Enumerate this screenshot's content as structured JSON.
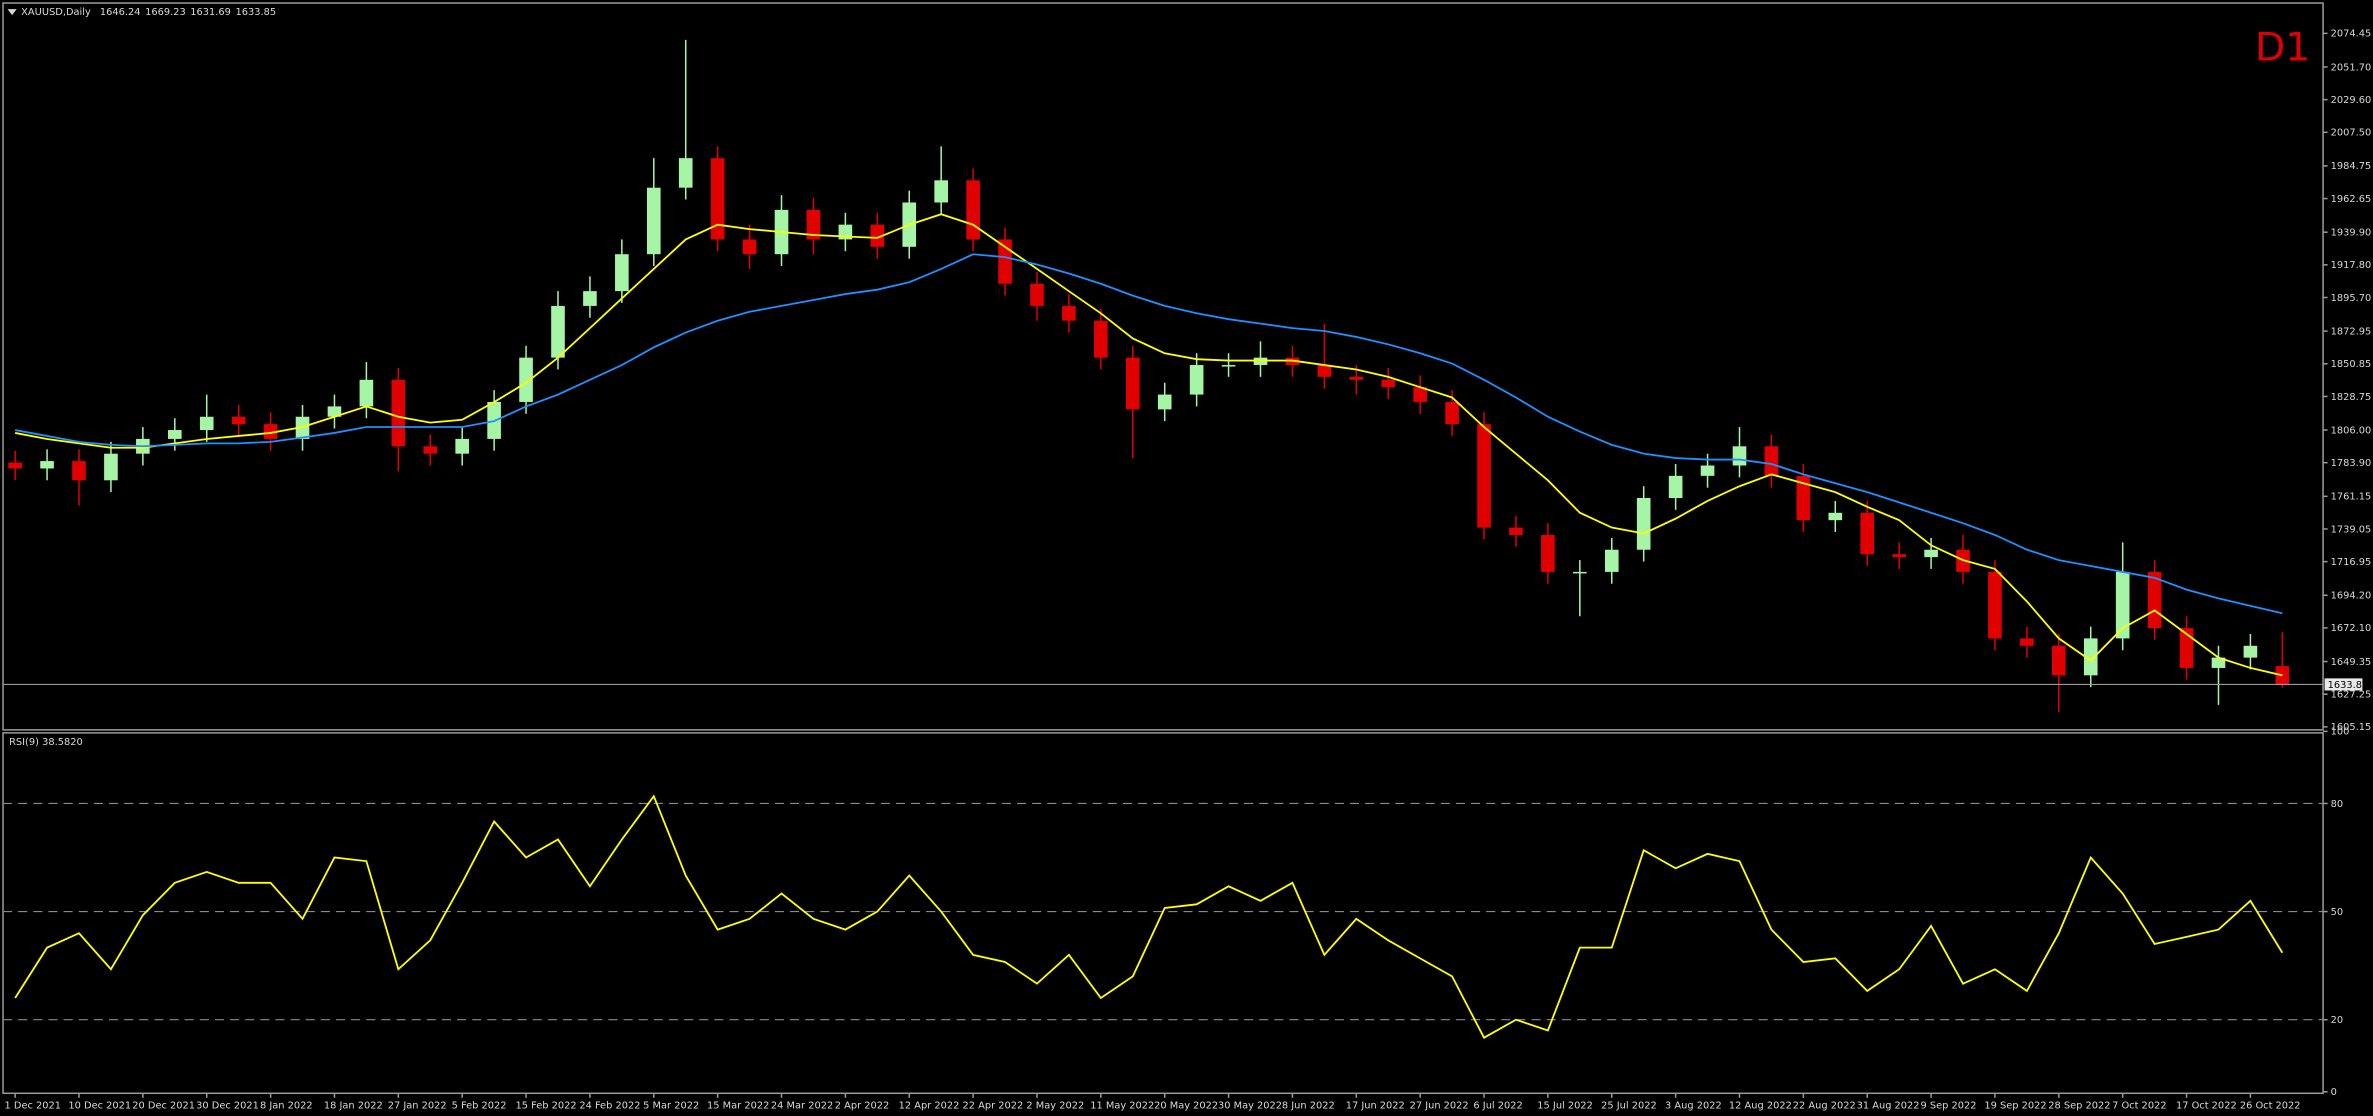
{
  "chart_data": [
    {
      "type": "candlestick",
      "title": "XAUUSD,Daily",
      "badge": "D1",
      "up_color": "#a6f5a6",
      "down_color": "#e00000",
      "open": [
        1784,
        1780,
        1785,
        1772,
        1790,
        1800,
        1806,
        1815,
        1810,
        1800,
        1815,
        1822,
        1840,
        1795,
        1790,
        1800,
        1825,
        1855,
        1890,
        1900,
        1925,
        1970,
        1990,
        1935,
        1925,
        1955,
        1935,
        1945,
        1930,
        1960,
        1975,
        1935,
        1905,
        1890,
        1880,
        1855,
        1820,
        1830,
        1850,
        1850,
        1855,
        1850,
        1842,
        1840,
        1835,
        1825,
        1810,
        1740,
        1735,
        1710,
        1710,
        1725,
        1760,
        1775,
        1782,
        1795,
        1775,
        1745,
        1750,
        1722,
        1720,
        1725,
        1710,
        1665,
        1660,
        1640,
        1665,
        1710,
        1672,
        1645,
        1652,
        1646.24
      ],
      "high": [
        1792,
        1793,
        1793,
        1798,
        1808,
        1814,
        1830,
        1823,
        1818,
        1823,
        1830,
        1852,
        1848,
        1803,
        1808,
        1833,
        1863,
        1900,
        1910,
        1935,
        1990,
        2070,
        1998,
        1945,
        1965,
        1963,
        1953,
        1953,
        1968,
        1998,
        1983,
        1943,
        1913,
        1898,
        1888,
        1863,
        1838,
        1858,
        1858,
        1866,
        1863,
        1878,
        1850,
        1848,
        1843,
        1833,
        1818,
        1748,
        1743,
        1718,
        1733,
        1768,
        1783,
        1790,
        1808,
        1803,
        1783,
        1758,
        1758,
        1730,
        1733,
        1735,
        1718,
        1673,
        1668,
        1673,
        1730,
        1718,
        1680,
        1660,
        1668,
        1669.23
      ],
      "low": [
        1772,
        1772,
        1755,
        1764,
        1782,
        1792,
        1798,
        1802,
        1792,
        1792,
        1807,
        1814,
        1778,
        1782,
        1782,
        1792,
        1817,
        1847,
        1882,
        1892,
        1917,
        1962,
        1927,
        1915,
        1917,
        1925,
        1927,
        1922,
        1922,
        1952,
        1927,
        1897,
        1880,
        1872,
        1847,
        1787,
        1812,
        1822,
        1842,
        1842,
        1842,
        1834,
        1830,
        1827,
        1817,
        1802,
        1732,
        1727,
        1702,
        1680,
        1702,
        1717,
        1752,
        1767,
        1774,
        1767,
        1737,
        1737,
        1714,
        1712,
        1712,
        1702,
        1657,
        1652,
        1615,
        1632,
        1657,
        1664,
        1637,
        1620,
        1644,
        1631.69
      ],
      "close": [
        1780,
        1785,
        1772,
        1790,
        1800,
        1806,
        1815,
        1810,
        1800,
        1815,
        1822,
        1840,
        1795,
        1790,
        1800,
        1825,
        1855,
        1890,
        1900,
        1925,
        1970,
        1990,
        1935,
        1925,
        1955,
        1935,
        1945,
        1930,
        1960,
        1975,
        1935,
        1905,
        1890,
        1880,
        1855,
        1820,
        1830,
        1850,
        1850,
        1855,
        1850,
        1842,
        1840,
        1835,
        1825,
        1810,
        1740,
        1735,
        1710,
        1710,
        1725,
        1760,
        1775,
        1782,
        1795,
        1775,
        1745,
        1750,
        1722,
        1720,
        1725,
        1710,
        1665,
        1660,
        1640,
        1665,
        1710,
        1672,
        1645,
        1652,
        1660,
        1633.85
      ],
      "ma": [
        {
          "color": "#ffff00",
          "values": [
            1804,
            1800,
            1797,
            1794,
            1794,
            1797,
            1800,
            1802,
            1804,
            1808,
            1815,
            1822,
            1815,
            1811,
            1813,
            1825,
            1838,
            1855,
            1875,
            1895,
            1915,
            1935,
            1945,
            1942,
            1940,
            1938,
            1937,
            1936,
            1945,
            1952,
            1945,
            1930,
            1915,
            1900,
            1885,
            1868,
            1858,
            1854,
            1853,
            1853,
            1853,
            1850,
            1847,
            1842,
            1835,
            1828,
            1808,
            1790,
            1772,
            1750,
            1740,
            1736,
            1746,
            1758,
            1768,
            1776,
            1770,
            1764,
            1754,
            1745,
            1728,
            1718,
            1712,
            1690,
            1665,
            1650,
            1672,
            1684,
            1668,
            1652,
            1645,
            1640
          ]
        },
        {
          "color": "#1e90ff",
          "values": [
            1806,
            1802,
            1798,
            1796,
            1795,
            1796,
            1797,
            1797,
            1798,
            1801,
            1804,
            1808,
            1808,
            1808,
            1808,
            1812,
            1822,
            1830,
            1840,
            1850,
            1862,
            1872,
            1880,
            1886,
            1890,
            1894,
            1898,
            1901,
            1906,
            1915,
            1925,
            1923,
            1918,
            1912,
            1905,
            1897,
            1890,
            1885,
            1881,
            1878,
            1875,
            1873,
            1869,
            1864,
            1858,
            1851,
            1840,
            1828,
            1815,
            1805,
            1796,
            1790,
            1787,
            1786,
            1786,
            1783,
            1776,
            1770,
            1764,
            1757,
            1750,
            1743,
            1735,
            1725,
            1718,
            1714,
            1710,
            1706,
            1698,
            1692,
            1687,
            1682
          ]
        }
      ],
      "ylim": [
        1603.1,
        2091.9
      ],
      "yticks": [
        2074.45,
        {
          "value": 2051.7,
          "label": "2051.70"
        },
        {
          "value": 2029.6,
          "label": "2029.60"
        },
        {
          "value": 2007.5,
          "label": "2007.50"
        },
        1984.75,
        1962.65,
        {
          "value": 1939.9,
          "label": "1939.90"
        },
        {
          "value": 1917.8,
          "label": "1917.80"
        },
        {
          "value": 1895.7,
          "label": "1895.70"
        },
        1872.95,
        1850.85,
        1828.75,
        {
          "value": 1806,
          "label": "1806.00"
        },
        {
          "value": 1783.9,
          "label": "1783.90"
        },
        1761.15,
        1739.05,
        1716.95,
        {
          "value": 1694.2,
          "label": "1694.20"
        },
        {
          "value": 1672.1,
          "label": "1672.10"
        },
        1649.35,
        1627.25,
        1605.15
      ]
    },
    {
      "type": "line",
      "title": "RSI(9) 38.5820",
      "color": "#ffff00",
      "categories": [
        "1 Dec 2021",
        null,
        "10 Dec 2021",
        null,
        "20 Dec 2021",
        null,
        "30 Dec 2021",
        null,
        "8 Jan 2022",
        null,
        "18 Jan 2022",
        null,
        "27 Jan 2022",
        null,
        "5 Feb 2022",
        null,
        "15 Feb 2022",
        null,
        "24 Feb 2022",
        null,
        "5 Mar 2022",
        null,
        "15 Mar 2022",
        null,
        "24 Mar 2022",
        null,
        "2 Apr 2022",
        null,
        "12 Apr 2022",
        null,
        "22 Apr 2022",
        null,
        "2 May 2022",
        null,
        "11 May 2022",
        null,
        "20 May 2022",
        null,
        "30 May 2022",
        null,
        "8 Jun 2022",
        null,
        "17 Jun 2022",
        null,
        "27 Jun 2022",
        null,
        "6 Jul 2022",
        null,
        "15 Jul 2022",
        null,
        "25 Jul 2022",
        null,
        "3 Aug 2022",
        null,
        "12 Aug 2022",
        null,
        "22 Aug 2022",
        null,
        "31 Aug 2022",
        null,
        "9 Sep 2022",
        null,
        "19 Sep 2022",
        null,
        "28 Sep 2022",
        null,
        "7 Oct 2022",
        null,
        "17 Oct 2022",
        null,
        "26 Oct 2022",
        null
      ],
      "values": [
        26,
        40,
        44,
        34,
        49,
        58,
        61,
        58,
        58,
        48,
        65,
        64,
        34,
        42,
        58,
        75,
        65,
        70,
        57,
        70,
        82,
        60,
        45,
        48,
        55,
        48,
        45,
        50,
        60,
        50,
        38,
        36,
        30,
        38,
        26,
        32,
        51,
        52,
        57,
        53,
        58,
        38,
        48,
        42,
        37,
        32,
        15,
        20,
        17,
        40,
        40,
        67,
        62,
        66,
        64,
        45,
        36,
        37,
        28,
        34,
        46,
        30,
        34,
        28,
        44,
        65,
        55,
        41,
        43,
        45,
        53,
        38.58
      ],
      "ylim": [
        0,
        100
      ],
      "yticks": [
        100,
        80,
        50,
        20,
        0
      ]
    }
  ]
}
